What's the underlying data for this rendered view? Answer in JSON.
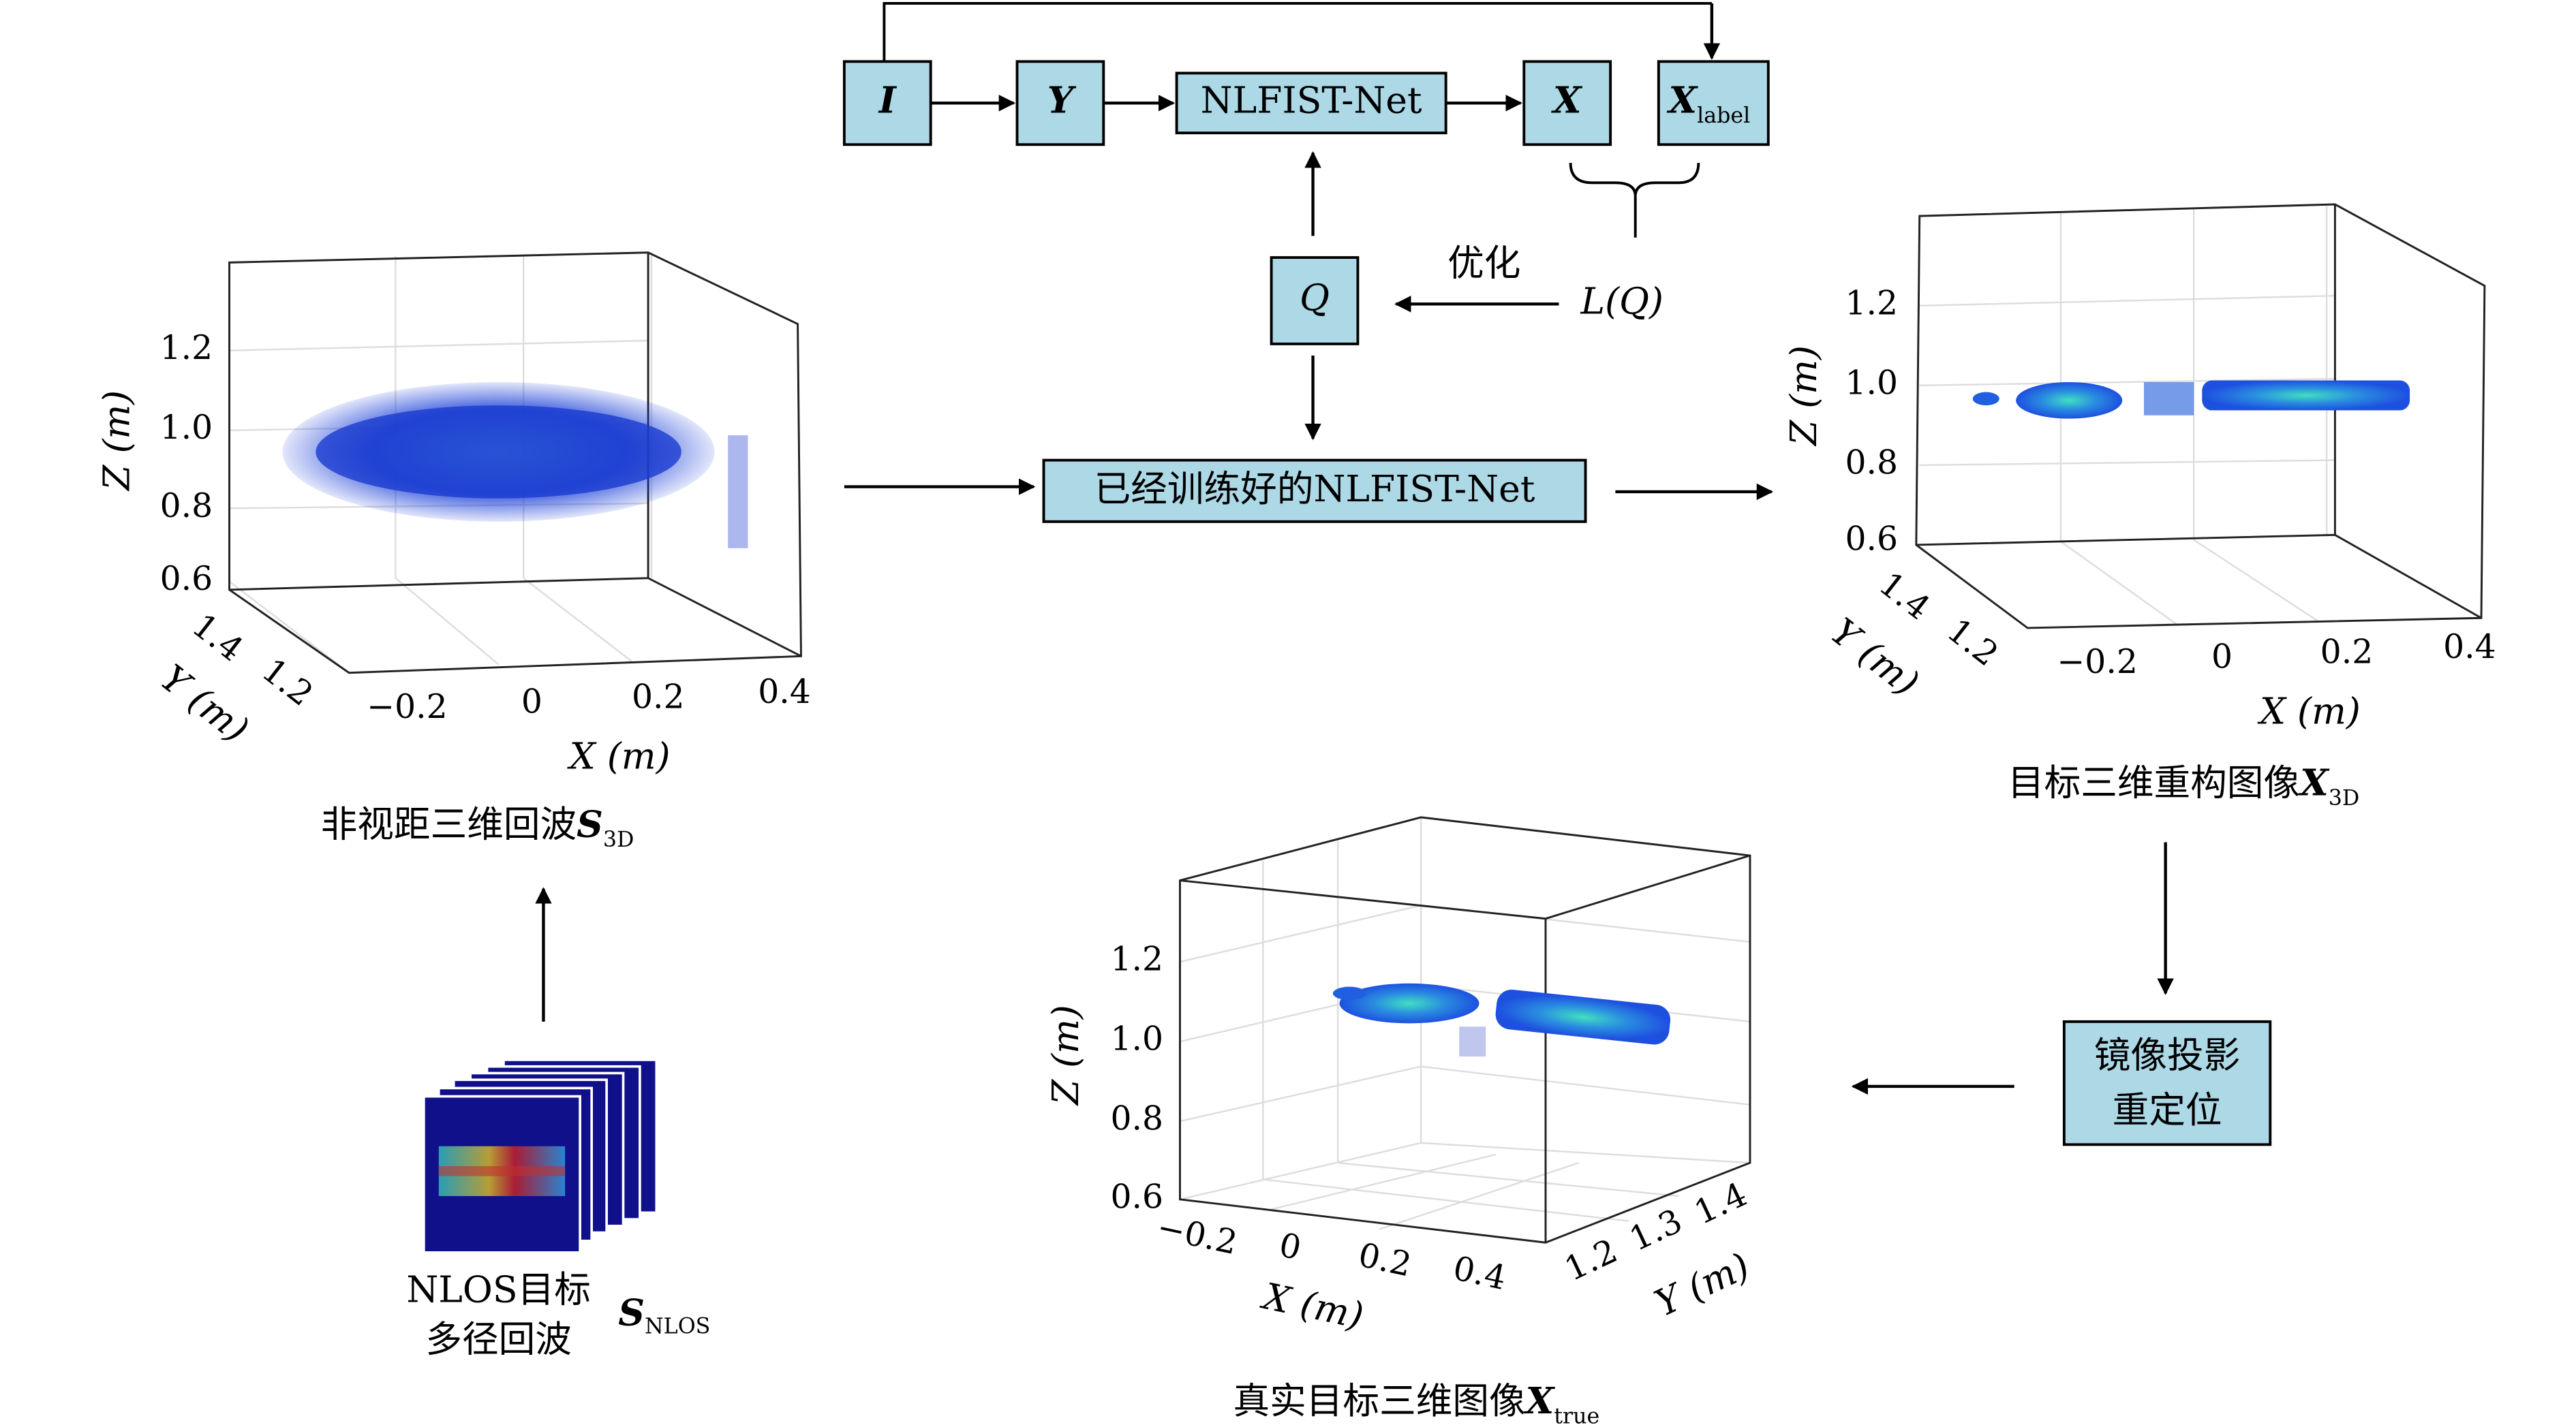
{
  "flow": {
    "nodes": [
      "I",
      "Y",
      "NLFIST-Net",
      "X"
    ],
    "label_node": {
      "symbol": "X",
      "sub": "label"
    },
    "q": "Q",
    "optimize": "优化",
    "loss": "L(Q)",
    "trained": "已经训练好的NLFIST-Net"
  },
  "relocate": {
    "lines": [
      "镜像投影",
      "重定位"
    ]
  },
  "nlos": {
    "lines": [
      "NLOS目标",
      "多径回波"
    ],
    "symbol": "S",
    "sub": "NLOS"
  },
  "plots": [
    {
      "zticks": [
        "1.2",
        "1.0",
        "0.8",
        "0.6"
      ],
      "yticks": [
        "1.4",
        "1.2"
      ],
      "xticks": [
        "−0.2",
        "0",
        "0.2",
        "0.4"
      ],
      "zlabel": "Z (m)",
      "ylabel": "Y (m)",
      "xlabel": "X (m)",
      "caption": {
        "text": "非视距三维回波",
        "symbol": "S",
        "sub": "3D"
      }
    },
    {
      "zticks": [
        "1.2",
        "1.0",
        "0.8",
        "0.6"
      ],
      "yticks": [
        "1.4",
        "1.2"
      ],
      "xticks": [
        "−0.2",
        "0",
        "0.2",
        "0.4"
      ],
      "zlabel": "Z (m)",
      "ylabel": "Y (m)",
      "xlabel": "X (m)",
      "caption": {
        "text": "目标三维重构图像",
        "symbol": "X",
        "sub": "3D"
      }
    },
    {
      "zticks": [
        "1.2",
        "1.0",
        "0.8",
        "0.6"
      ],
      "yticks": [
        "1.2",
        "1.3",
        "1.4"
      ],
      "xticks": [
        "−0.2",
        "0",
        "0.2",
        "0.4"
      ],
      "zlabel": "Z (m)",
      "ylabel": "Y (m)",
      "xlabel": "X (m)",
      "caption": {
        "text": "真实目标三维图像",
        "symbol": "X",
        "sub": "true"
      }
    }
  ]
}
